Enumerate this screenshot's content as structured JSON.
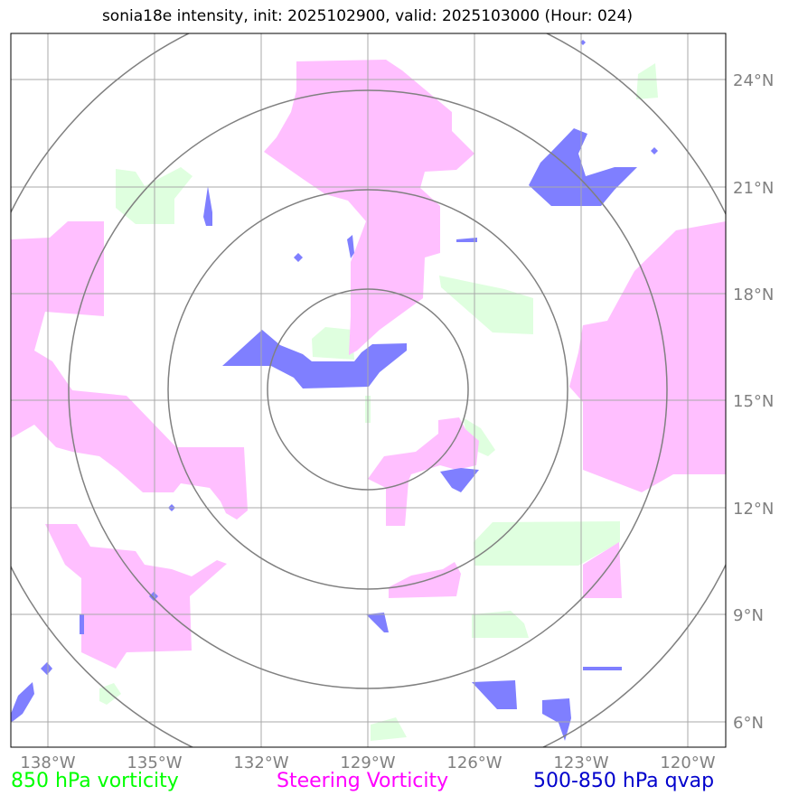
{
  "title": "sonia18e intensity, init: 2025102900, valid: 2025103000 (Hour: 024)",
  "map": {
    "lon_ticks": [
      "138°W",
      "135°W",
      "132°W",
      "129°W",
      "126°W",
      "123°W",
      "120°W"
    ],
    "lat_ticks": [
      "24°N",
      "21°N",
      "18°N",
      "15°N",
      "12°N",
      "9°N",
      "6°N"
    ],
    "lon_range": [
      -139,
      -119
    ],
    "lat_range": [
      5.3,
      25.3
    ],
    "center": {
      "lon": -129,
      "lat": 15.4
    },
    "range_rings": 4
  },
  "legend": {
    "green": {
      "label": "850 hPa vorticity",
      "color": "#00ff00"
    },
    "magenta": {
      "label": "Steering Vorticity",
      "color": "#ff00ff"
    },
    "blue": {
      "label": "500-850 hPa qvap",
      "color": "#0000cc"
    }
  },
  "colors": {
    "green_fill": "#dfffdf",
    "magenta_fill": "#ffbfff",
    "blue_fill": "#7f7fff",
    "grid": "#a9a9a9",
    "rings": "#808080"
  }
}
